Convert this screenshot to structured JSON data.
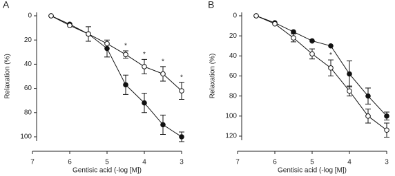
{
  "chart_data": [
    {
      "type": "line",
      "panel": "A",
      "y_label": "Relaxation (%)",
      "x_label": "Gentisic acid (-log [M])",
      "xlim": [
        7,
        3
      ],
      "xticks": [
        7,
        6,
        5,
        4,
        3
      ],
      "ylim": [
        0,
        100
      ],
      "y_inverted": true,
      "yticks": [
        0,
        20,
        40,
        60,
        80,
        100
      ],
      "x": [
        6.5,
        6,
        5.5,
        5,
        4.5,
        4,
        3.5,
        3
      ],
      "series": [
        {
          "color": "#111111",
          "marker": "filled",
          "values": [
            0,
            7,
            15,
            27,
            57,
            72,
            90,
            100
          ],
          "errors": [
            null,
            null,
            6,
            7,
            8,
            8,
            8,
            4
          ]
        },
        {
          "color": "#111111",
          "marker": "open",
          "values": [
            0,
            8,
            15,
            23,
            32,
            42,
            48,
            62
          ],
          "errors": [
            null,
            null,
            null,
            null,
            3,
            6,
            6,
            7
          ]
        }
      ],
      "annotations": [
        {
          "text": "*",
          "x": 4.5
        },
        {
          "text": "*",
          "x": 4
        },
        {
          "text": "*",
          "x": 3.5
        },
        {
          "text": "*",
          "x": 3
        }
      ]
    },
    {
      "type": "line",
      "panel": "B",
      "y_label": "Relaxation (%)",
      "x_label": "Gentisic acid (-log [M])",
      "xlim": [
        7,
        3
      ],
      "xticks": [
        7,
        6,
        5,
        4,
        3
      ],
      "ylim": [
        0,
        120
      ],
      "y_inverted": true,
      "yticks": [
        0,
        20,
        40,
        60,
        80,
        100,
        120
      ],
      "x": [
        6.5,
        6,
        5.5,
        5,
        4.5,
        4,
        3.5,
        3
      ],
      "series": [
        {
          "color": "#111111",
          "marker": "filled",
          "values": [
            0,
            7,
            16,
            25,
            30,
            58,
            80,
            100
          ],
          "errors": [
            null,
            null,
            null,
            null,
            null,
            13,
            8,
            4
          ]
        },
        {
          "color": "#111111",
          "marker": "open",
          "values": [
            0,
            8,
            22,
            38,
            52,
            75,
            100,
            114
          ],
          "errors": [
            null,
            null,
            4,
            5,
            8,
            5,
            7,
            7
          ]
        }
      ],
      "annotations": [
        {
          "text": "*",
          "x": 5
        },
        {
          "text": "*",
          "x": 4.5
        }
      ]
    }
  ]
}
